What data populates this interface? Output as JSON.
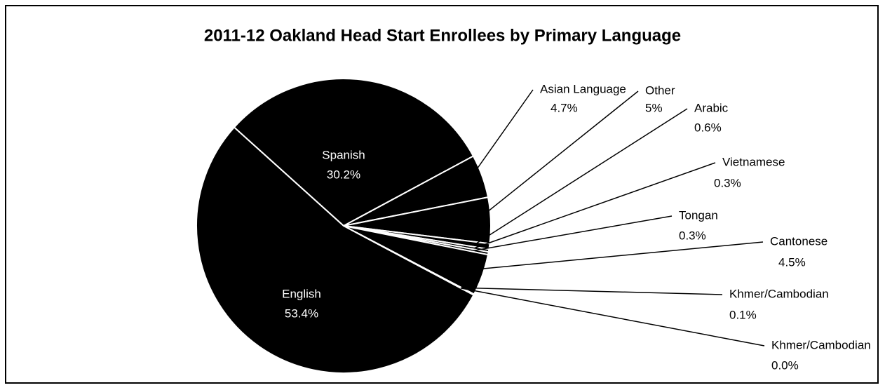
{
  "chart_data": {
    "type": "pie",
    "title": "2011-12 Oakland Head Start Enrollees by Primary Language",
    "categories": [
      "Spanish",
      "Asian Language",
      "Other",
      "Arabic",
      "Vietnamese",
      "Tongan",
      "Cantonese",
      "Khmer/Cambodian",
      "Khmer/Cambodian",
      "English"
    ],
    "values": [
      30.2,
      4.7,
      5,
      0.6,
      0.3,
      0.3,
      4.5,
      0.1,
      0.0,
      53.4
    ],
    "value_labels": [
      "30.2%",
      "4.7%",
      "5%",
      "0.6%",
      "0.3%",
      "0.3%",
      "4.5%",
      "0.1%",
      "0.0%",
      "53.4%"
    ],
    "color": "#000000"
  }
}
